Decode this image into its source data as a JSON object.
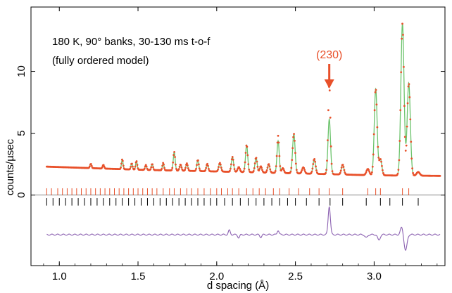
{
  "chart_data": {
    "type": "scatter",
    "annotation_lines": [
      "180 K, 90° banks, 30-130 ms t-o-f",
      "(fully ordered model)"
    ],
    "xlabel": "d spacing (Å)",
    "ylabel": "counts/µsec",
    "xlim": [
      0.82,
      3.45
    ],
    "ylim": [
      -5.7,
      15.2
    ],
    "x_ticks": [
      1.0,
      1.5,
      2.0,
      2.5,
      3.0
    ],
    "x_tick_labels": [
      "1.0",
      "1.5",
      "2.0",
      "2.5",
      "3.0"
    ],
    "y_ticks": [
      0,
      5,
      10
    ],
    "y_tick_labels": [
      "0",
      "5",
      "10"
    ],
    "grid": false,
    "legend": "none",
    "colors": {
      "observed": "#e8502a",
      "calculated": "#6cc36c",
      "difference": "#8a5fb0",
      "ticks_phase1": "#e8502a",
      "ticks_phase2": "#000000",
      "highlight": "#e8502a"
    },
    "highlight": {
      "label": "(230)",
      "x": 2.715
    },
    "background": {
      "x": [
        0.92,
        1.5,
        2.2,
        3.0,
        3.42
      ],
      "y": [
        2.3,
        2.05,
        1.85,
        1.6,
        1.55
      ]
    },
    "peaks": [
      {
        "d": 1.2,
        "h": 0.35,
        "w": 0.005
      },
      {
        "d": 1.28,
        "h": 0.3,
        "w": 0.005
      },
      {
        "d": 1.4,
        "h": 0.8,
        "w": 0.005
      },
      {
        "d": 1.46,
        "h": 0.5,
        "w": 0.005
      },
      {
        "d": 1.49,
        "h": 0.7,
        "w": 0.005
      },
      {
        "d": 1.55,
        "h": 0.4,
        "w": 0.005
      },
      {
        "d": 1.59,
        "h": 0.5,
        "w": 0.005
      },
      {
        "d": 1.66,
        "h": 0.6,
        "w": 0.005
      },
      {
        "d": 1.73,
        "h": 1.5,
        "w": 0.006
      },
      {
        "d": 1.77,
        "h": 0.5,
        "w": 0.006
      },
      {
        "d": 1.81,
        "h": 0.6,
        "w": 0.006
      },
      {
        "d": 1.88,
        "h": 0.9,
        "w": 0.006
      },
      {
        "d": 1.94,
        "h": 0.6,
        "w": 0.006
      },
      {
        "d": 2.02,
        "h": 0.7,
        "w": 0.007
      },
      {
        "d": 2.1,
        "h": 1.2,
        "w": 0.007
      },
      {
        "d": 2.14,
        "h": 0.4,
        "w": 0.007
      },
      {
        "d": 2.19,
        "h": 2.2,
        "w": 0.007
      },
      {
        "d": 2.25,
        "h": 1.2,
        "w": 0.007
      },
      {
        "d": 2.28,
        "h": 0.5,
        "w": 0.007
      },
      {
        "d": 2.33,
        "h": 0.7,
        "w": 0.007
      },
      {
        "d": 2.39,
        "h": 2.6,
        "w": 0.007
      },
      {
        "d": 2.42,
        "h": 0.4,
        "w": 0.007
      },
      {
        "d": 2.49,
        "h": 3.2,
        "w": 0.008
      },
      {
        "d": 2.55,
        "h": 0.5,
        "w": 0.008
      },
      {
        "d": 2.62,
        "h": 1.2,
        "w": 0.008
      },
      {
        "d": 2.715,
        "h": 4.45,
        "w": 0.008
      },
      {
        "d": 2.8,
        "h": 0.8,
        "w": 0.008
      },
      {
        "d": 2.96,
        "h": 0.5,
        "w": 0.009
      },
      {
        "d": 3.01,
        "h": 7.0,
        "w": 0.009
      },
      {
        "d": 3.04,
        "h": 1.3,
        "w": 0.009
      },
      {
        "d": 3.18,
        "h": 12.3,
        "w": 0.01
      },
      {
        "d": 3.22,
        "h": 7.5,
        "w": 0.01
      },
      {
        "d": 3.28,
        "h": 0.3,
        "w": 0.01
      }
    ],
    "observed_excess": [
      {
        "d": 2.715,
        "dy": 2.8,
        "w": 0.006
      },
      {
        "d": 2.39,
        "dy": 0.4,
        "w": 0.005
      },
      {
        "d": 3.2,
        "dy": -0.6,
        "w": 0.008
      }
    ],
    "reflection_ticks_phase1_red": [
      0.92,
      0.95,
      0.99,
      1.02,
      1.05,
      1.08,
      1.11,
      1.14,
      1.17,
      1.2,
      1.23,
      1.26,
      1.29,
      1.32,
      1.35,
      1.38,
      1.41,
      1.44,
      1.47,
      1.5,
      1.53,
      1.56,
      1.59,
      1.62,
      1.66,
      1.7,
      1.73,
      1.77,
      1.81,
      1.84,
      1.88,
      1.92,
      1.96,
      2.0,
      2.03,
      2.07,
      2.1,
      2.14,
      2.19,
      2.23,
      2.27,
      2.31,
      2.36,
      2.4,
      2.46,
      2.52,
      2.59,
      2.65,
      2.715,
      2.8,
      2.96,
      3.01,
      3.04,
      3.18,
      3.22
    ],
    "reflection_ticks_phase2_black": [
      0.92,
      0.96,
      1.0,
      1.04,
      1.08,
      1.12,
      1.16,
      1.2,
      1.24,
      1.28,
      1.32,
      1.36,
      1.4,
      1.44,
      1.48,
      1.52,
      1.56,
      1.6,
      1.64,
      1.68,
      1.72,
      1.76,
      1.8,
      1.84,
      1.88,
      1.92,
      1.96,
      2.0,
      2.05,
      2.1,
      2.15,
      2.2,
      2.25,
      2.3,
      2.35,
      2.4,
      2.45,
      2.5,
      2.57,
      2.65,
      2.72,
      2.8,
      2.95,
      3.04,
      3.1,
      3.18,
      3.28
    ],
    "difference": {
      "offset": -3.2,
      "features": [
        {
          "d": 2.715,
          "dy": 2.3,
          "w": 0.007
        },
        {
          "d": 2.39,
          "dy": 0.35,
          "w": 0.006
        },
        {
          "d": 2.08,
          "dy": 0.35,
          "w": 0.006
        },
        {
          "d": 2.14,
          "dy": -0.25,
          "w": 0.006
        },
        {
          "d": 2.28,
          "dy": -0.2,
          "w": 0.006
        },
        {
          "d": 2.95,
          "dy": -0.25,
          "w": 0.008
        },
        {
          "d": 3.03,
          "dy": -0.45,
          "w": 0.008
        },
        {
          "d": 3.175,
          "dy": 0.6,
          "w": 0.008
        },
        {
          "d": 3.2,
          "dy": -1.3,
          "w": 0.009
        }
      ]
    }
  }
}
